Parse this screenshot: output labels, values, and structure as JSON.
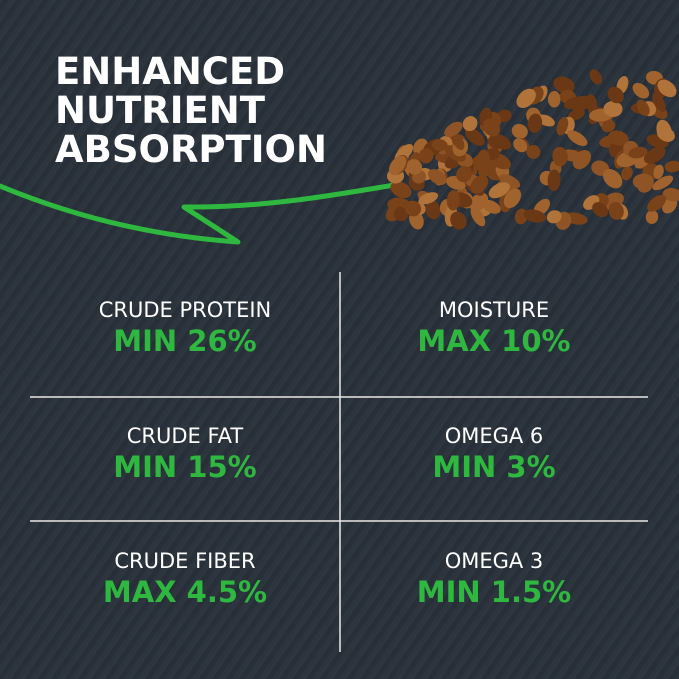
{
  "headline": [
    "ENHANCED",
    "NUTRIENT",
    "ABSORPTION"
  ],
  "colors": {
    "background": "#29313a",
    "accent": "#2fb83f",
    "text": "#ffffff",
    "kibble": "#8a4f22"
  },
  "nutrients": [
    {
      "label": "CRUDE PROTEIN",
      "value": "MIN 26%"
    },
    {
      "label": "MOISTURE",
      "value": "MAX 10%"
    },
    {
      "label": "CRUDE FAT",
      "value": "MIN 15%"
    },
    {
      "label": "OMEGA 6",
      "value": "MIN 3%"
    },
    {
      "label": "CRUDE FIBER",
      "value": "MAX 4.5%"
    },
    {
      "label": "OMEGA 3",
      "value": "MIN 1.5%"
    }
  ]
}
